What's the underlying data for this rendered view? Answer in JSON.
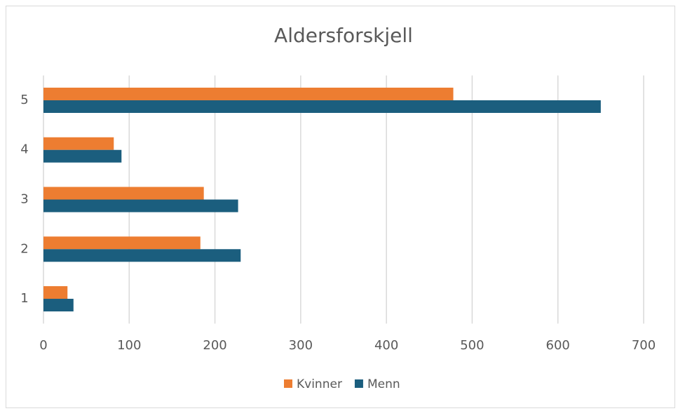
{
  "chart_data": {
    "type": "barh",
    "title": "Aldersforskjell",
    "categories": [
      "1",
      "2",
      "3",
      "4",
      "5"
    ],
    "series": [
      {
        "name": "Kvinner",
        "color": "#ed7d31",
        "values": [
          28,
          183,
          187,
          82,
          478
        ]
      },
      {
        "name": "Menn",
        "color": "#1b5e7e",
        "values": [
          35,
          230,
          227,
          91,
          650
        ]
      }
    ],
    "xlim": [
      0,
      700
    ],
    "xticks": [
      0,
      100,
      200,
      300,
      400,
      500,
      600,
      700
    ],
    "grid": true,
    "legend": "bottom"
  }
}
